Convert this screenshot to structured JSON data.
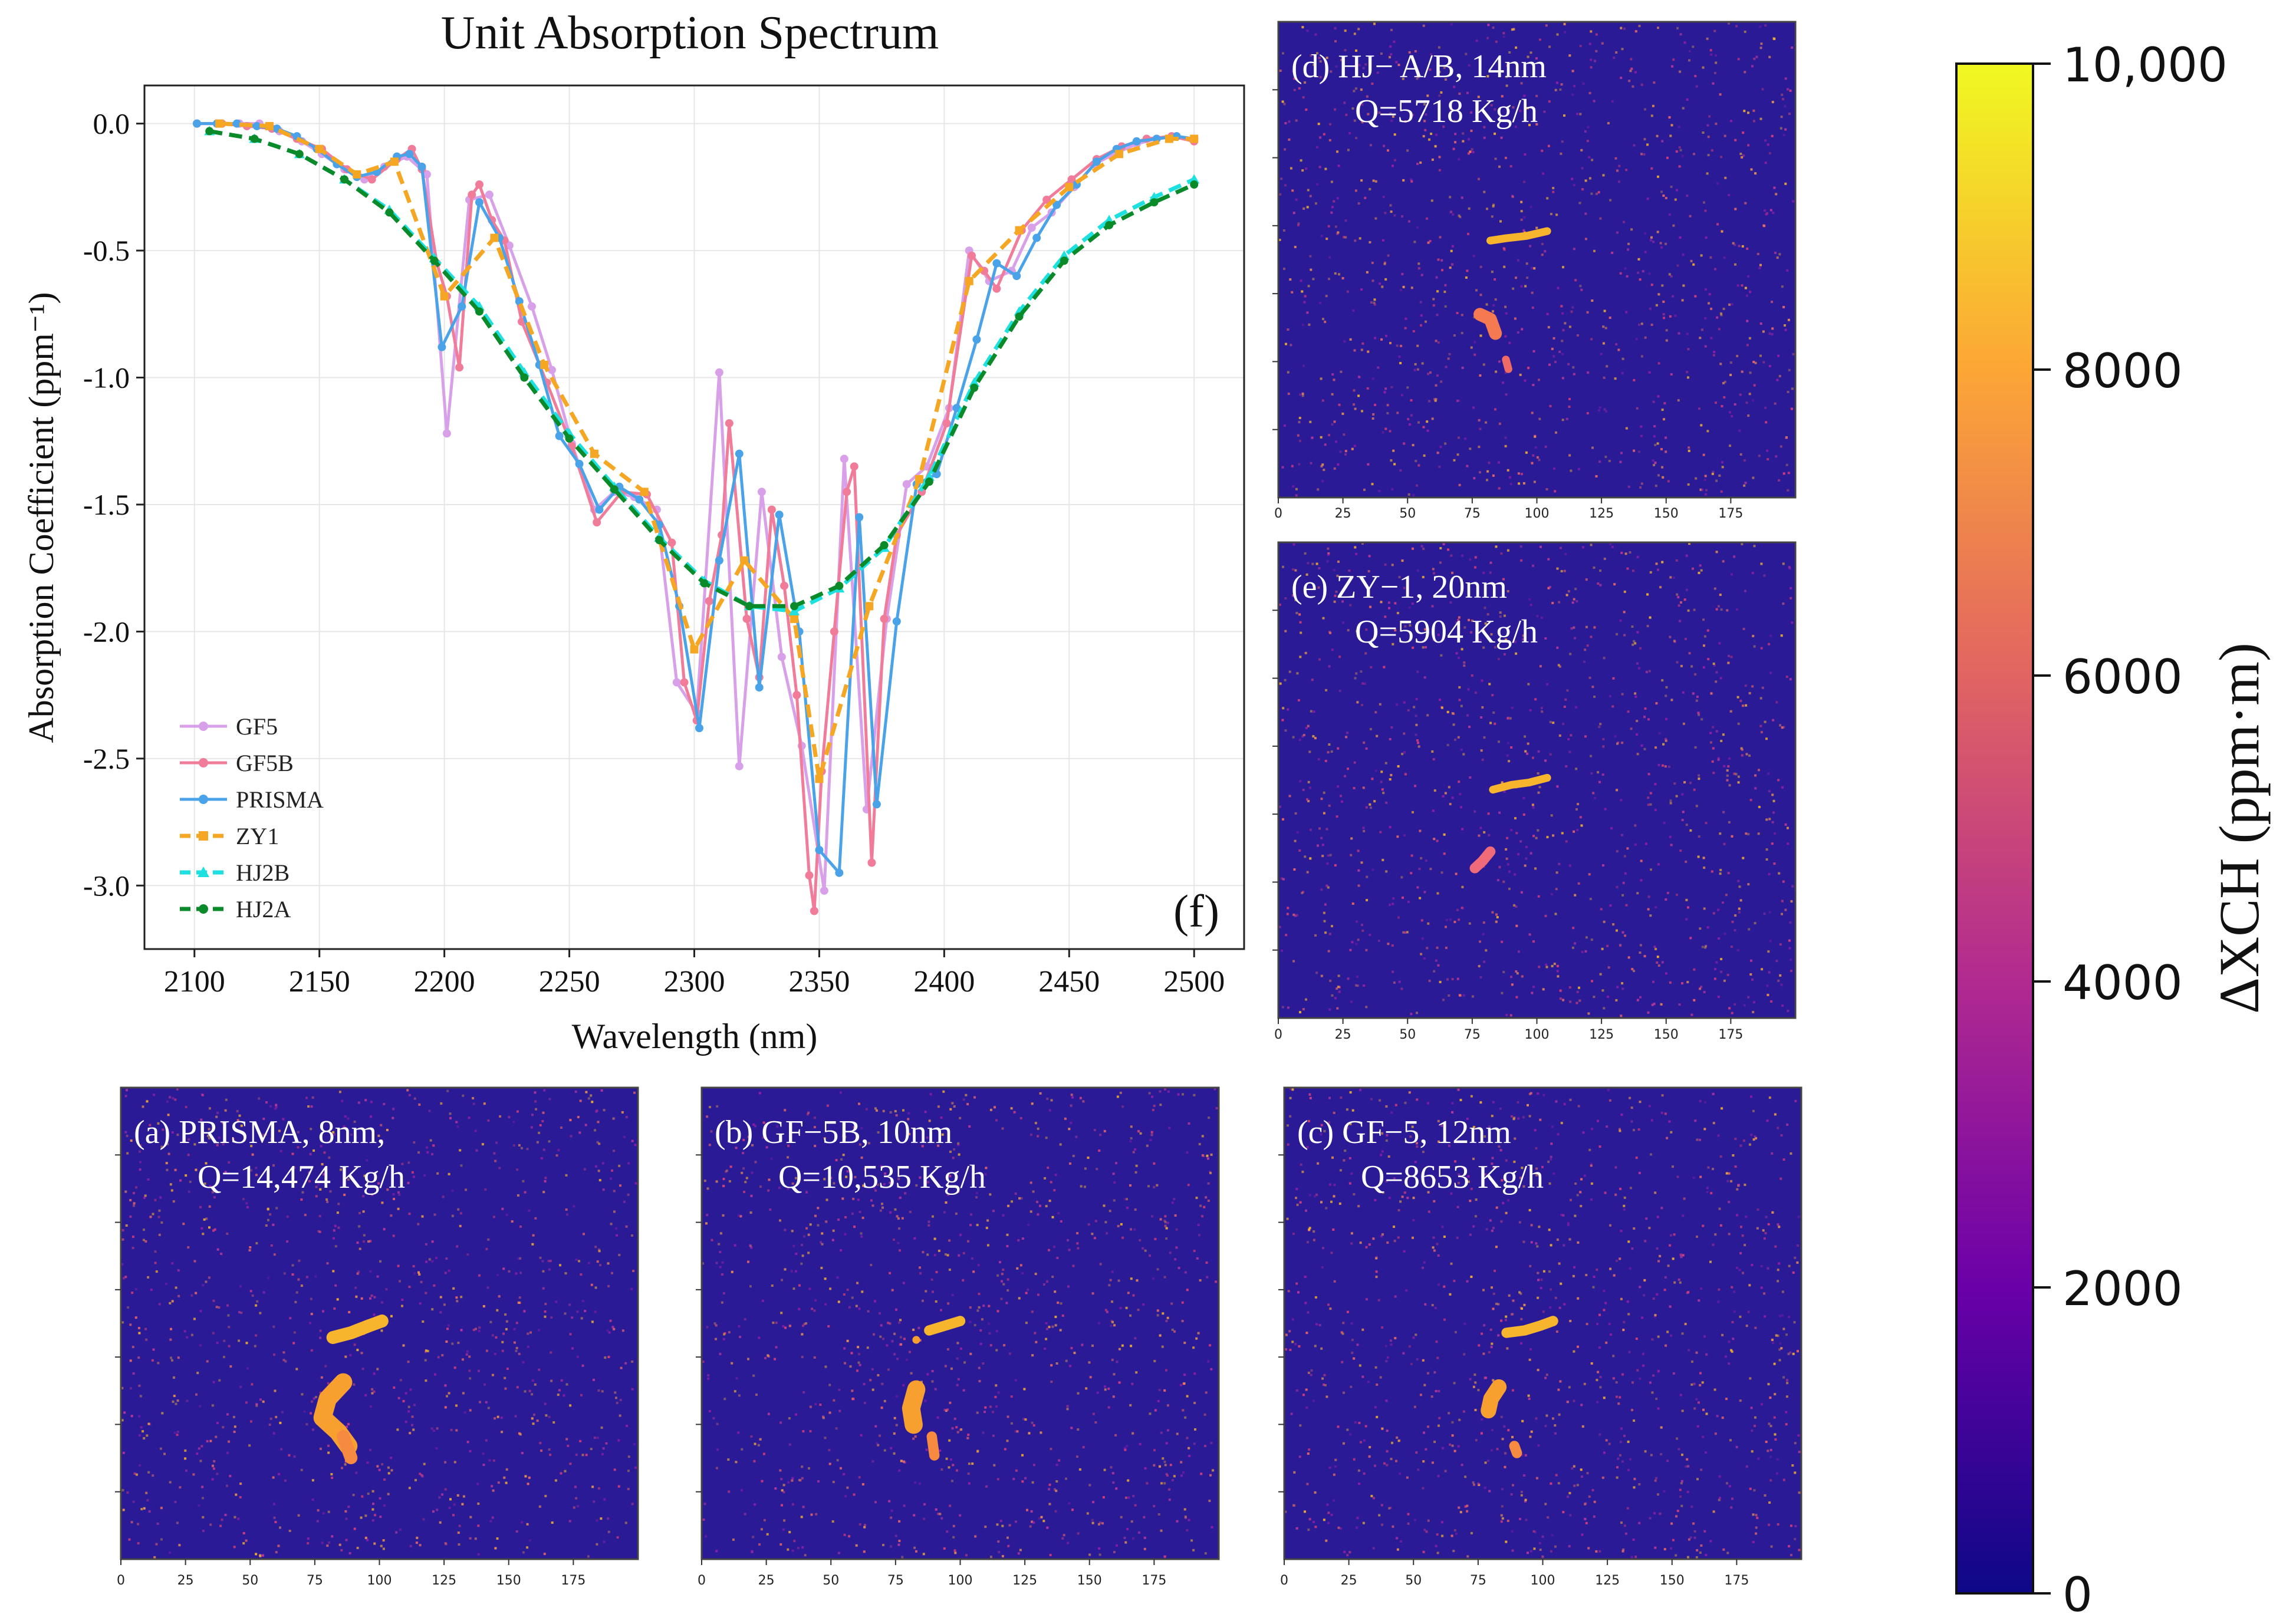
{
  "chart_data": [
    {
      "panel": "f",
      "type": "line",
      "title": "Unit Absorption Spectrum",
      "xlabel": "Wavelength (nm)",
      "ylabel": "Absorption Coefficient (ppm⁻¹)",
      "panel_label": "(f)",
      "xlim": [
        2080,
        2520
      ],
      "ylim": [
        -3.25,
        0.15
      ],
      "grid": true,
      "legend_position": "bottom-left",
      "xticks": [
        {
          "v": 2100,
          "label": "2100"
        },
        {
          "v": 2150,
          "label": "2150"
        },
        {
          "v": 2200,
          "label": "2200"
        },
        {
          "v": 2250,
          "label": "2250"
        },
        {
          "v": 2300,
          "label": "2300"
        },
        {
          "v": 2350,
          "label": "2350"
        },
        {
          "v": 2400,
          "label": "2400"
        },
        {
          "v": 2450,
          "label": "2450"
        },
        {
          "v": 2500,
          "label": "2500"
        }
      ],
      "yticks": [
        {
          "v": 0,
          "label": "0.0"
        },
        {
          "v": -0.5,
          "label": "-0.5"
        },
        {
          "v": -1.0,
          "label": "-1.0"
        },
        {
          "v": -1.5,
          "label": "-1.5"
        },
        {
          "v": -2.0,
          "label": "-2.0"
        },
        {
          "v": -2.5,
          "label": "-2.5"
        },
        {
          "v": -3.0,
          "label": "-3.0"
        }
      ],
      "series": [
        {
          "name": "GF5",
          "color": "#d8a0e8",
          "dash": false,
          "marker": "circle",
          "x": [
            2101,
            2109,
            2118,
            2126,
            2134,
            2143,
            2151,
            2160,
            2168,
            2176,
            2185,
            2193,
            2201,
            2210,
            2218,
            2226,
            2235,
            2243,
            2251,
            2260,
            2268,
            2276,
            2285,
            2293,
            2301,
            2310,
            2318,
            2327,
            2335,
            2343,
            2352,
            2360,
            2369,
            2377,
            2385,
            2393,
            2402,
            2410,
            2418,
            2427,
            2435,
            2443,
            2452,
            2460,
            2468,
            2477,
            2485,
            2493,
            2500
          ],
          "y": [
            0.0,
            0.0,
            0.0,
            0.0,
            -0.03,
            -0.07,
            -0.12,
            -0.18,
            -0.22,
            -0.17,
            -0.13,
            -0.2,
            -1.22,
            -0.3,
            -0.28,
            -0.48,
            -0.72,
            -0.97,
            -1.26,
            -1.52,
            -1.45,
            -1.47,
            -1.52,
            -2.2,
            -2.32,
            -0.98,
            -2.53,
            -1.45,
            -2.1,
            -2.45,
            -3.02,
            -1.32,
            -2.7,
            -1.95,
            -1.42,
            -1.35,
            -1.12,
            -0.5,
            -0.62,
            -0.58,
            -0.41,
            -0.35,
            -0.25,
            -0.16,
            -0.12,
            -0.08,
            -0.06,
            -0.05,
            -0.06
          ]
        },
        {
          "name": "GF5B",
          "color": "#f07c9a",
          "dash": false,
          "marker": "circle",
          "x": [
            2101,
            2111,
            2121,
            2131,
            2141,
            2151,
            2161,
            2171,
            2181,
            2187,
            2191,
            2197,
            2201,
            2206,
            2211,
            2214,
            2219,
            2224,
            2231,
            2241,
            2251,
            2261,
            2271,
            2281,
            2291,
            2296,
            2301,
            2306,
            2311,
            2314,
            2321,
            2326,
            2331,
            2336,
            2341,
            2346,
            2348,
            2351,
            2356,
            2361,
            2364,
            2371,
            2376,
            2381,
            2391,
            2401,
            2411,
            2416,
            2421,
            2431,
            2441,
            2451,
            2461,
            2471,
            2481,
            2491,
            2500
          ],
          "y": [
            0.0,
            0.0,
            -0.01,
            -0.02,
            -0.06,
            -0.1,
            -0.18,
            -0.22,
            -0.14,
            -0.1,
            -0.18,
            -0.55,
            -0.68,
            -0.96,
            -0.28,
            -0.24,
            -0.38,
            -0.46,
            -0.78,
            -1.02,
            -1.27,
            -1.57,
            -1.45,
            -1.46,
            -1.65,
            -2.2,
            -2.35,
            -1.88,
            -1.62,
            -1.18,
            -1.95,
            -2.18,
            -1.52,
            -1.82,
            -2.25,
            -2.96,
            -3.1,
            -2.55,
            -2.0,
            -1.45,
            -1.35,
            -2.91,
            -1.95,
            -1.62,
            -1.45,
            -1.18,
            -0.52,
            -0.58,
            -0.65,
            -0.42,
            -0.3,
            -0.22,
            -0.14,
            -0.09,
            -0.06,
            -0.05,
            -0.07
          ]
        },
        {
          "name": "PRISMA",
          "color": "#4aa3e8",
          "dash": false,
          "marker": "circle",
          "x": [
            2101,
            2109,
            2117,
            2125,
            2133,
            2141,
            2149,
            2157,
            2165,
            2173,
            2181,
            2186,
            2191,
            2199,
            2207,
            2214,
            2222,
            2230,
            2238,
            2246,
            2254,
            2262,
            2270,
            2278,
            2286,
            2294,
            2302,
            2310,
            2318,
            2326,
            2334,
            2342,
            2350,
            2358,
            2366,
            2373,
            2381,
            2389,
            2397,
            2405,
            2413,
            2421,
            2429,
            2437,
            2445,
            2453,
            2461,
            2469,
            2477,
            2485,
            2493,
            2500
          ],
          "y": [
            0.0,
            0.0,
            0.0,
            -0.01,
            -0.02,
            -0.05,
            -0.1,
            -0.16,
            -0.21,
            -0.19,
            -0.13,
            -0.12,
            -0.17,
            -0.88,
            -0.72,
            -0.31,
            -0.45,
            -0.7,
            -0.95,
            -1.23,
            -1.34,
            -1.52,
            -1.43,
            -1.48,
            -1.58,
            -1.9,
            -2.38,
            -1.72,
            -1.3,
            -2.22,
            -1.54,
            -2.0,
            -2.86,
            -2.95,
            -1.55,
            -2.68,
            -1.96,
            -1.42,
            -1.38,
            -1.12,
            -0.85,
            -0.55,
            -0.6,
            -0.45,
            -0.32,
            -0.24,
            -0.15,
            -0.1,
            -0.07,
            -0.06,
            -0.05,
            -0.06
          ]
        },
        {
          "name": "ZY1",
          "color": "#f5a623",
          "dash": true,
          "marker": "square",
          "x": [
            2110,
            2130,
            2150,
            2165,
            2180,
            2200,
            2220,
            2240,
            2260,
            2280,
            2300,
            2320,
            2340,
            2350,
            2370,
            2390,
            2410,
            2430,
            2450,
            2470,
            2490,
            2500
          ],
          "y": [
            0.0,
            -0.01,
            -0.1,
            -0.2,
            -0.15,
            -0.68,
            -0.45,
            -0.95,
            -1.3,
            -1.45,
            -2.07,
            -1.72,
            -1.95,
            -2.58,
            -1.9,
            -1.4,
            -0.62,
            -0.42,
            -0.25,
            -0.12,
            -0.06,
            -0.06
          ]
        },
        {
          "name": "HJ2B",
          "color": "#1ee0e0",
          "dash": true,
          "marker": "triangle",
          "x": [
            2106,
            2124,
            2142,
            2160,
            2178,
            2196,
            2214,
            2232,
            2250,
            2268,
            2286,
            2304,
            2322,
            2340,
            2358,
            2376,
            2394,
            2412,
            2430,
            2448,
            2466,
            2484,
            2500
          ],
          "y": [
            -0.03,
            -0.06,
            -0.12,
            -0.22,
            -0.34,
            -0.53,
            -0.72,
            -0.98,
            -1.22,
            -1.43,
            -1.63,
            -1.8,
            -1.9,
            -1.92,
            -1.83,
            -1.67,
            -1.39,
            -1.02,
            -0.74,
            -0.52,
            -0.38,
            -0.29,
            -0.22
          ]
        },
        {
          "name": "HJ2A",
          "color": "#0a8a28",
          "dash": true,
          "marker": "circle",
          "x": [
            2106,
            2124,
            2142,
            2160,
            2178,
            2196,
            2214,
            2232,
            2250,
            2268,
            2286,
            2304,
            2322,
            2340,
            2358,
            2376,
            2394,
            2412,
            2430,
            2448,
            2466,
            2484,
            2500
          ],
          "y": [
            -0.03,
            -0.06,
            -0.12,
            -0.22,
            -0.35,
            -0.54,
            -0.74,
            -1.0,
            -1.24,
            -1.44,
            -1.64,
            -1.81,
            -1.9,
            -1.9,
            -1.82,
            -1.66,
            -1.41,
            -1.04,
            -0.76,
            -0.54,
            -0.4,
            -0.31,
            -0.24
          ]
        }
      ]
    },
    {
      "panel": "d",
      "type": "heatmap",
      "label_line1": "(d) HJ− A/B, 14nm",
      "label_line2": "Q=5718 Kg/h",
      "xticks": [
        {
          "v": 0,
          "label": "0"
        },
        {
          "v": 25,
          "label": "25"
        },
        {
          "v": 50,
          "label": "50"
        },
        {
          "v": 75,
          "label": "75"
        },
        {
          "v": 100,
          "label": "100"
        },
        {
          "v": 125,
          "label": "125"
        },
        {
          "v": 150,
          "label": "150"
        },
        {
          "v": 175,
          "label": "175"
        }
      ],
      "xlim": [
        0,
        200
      ],
      "ylim": [
        0,
        200
      ],
      "plume": [
        {
          "x": [
            82,
            88,
            96,
            104
          ],
          "y": [
            92,
            91,
            90,
            88
          ],
          "w": 3,
          "color": "#f7b52e"
        },
        {
          "x": [
            78,
            82,
            84
          ],
          "y": [
            123,
            125,
            131
          ],
          "w": 5,
          "color": "#f57a52"
        },
        {
          "x": [
            88,
            89
          ],
          "y": [
            142,
            146
          ],
          "w": 3,
          "color": "#f06a66"
        }
      ]
    },
    {
      "panel": "e",
      "type": "heatmap",
      "label_line1": "(e) ZY−1, 20nm",
      "label_line2": "Q=5904 Kg/h",
      "xticks": [
        {
          "v": 0,
          "label": "0"
        },
        {
          "v": 25,
          "label": "25"
        },
        {
          "v": 50,
          "label": "50"
        },
        {
          "v": 75,
          "label": "75"
        },
        {
          "v": 100,
          "label": "100"
        },
        {
          "v": 125,
          "label": "125"
        },
        {
          "v": 150,
          "label": "150"
        },
        {
          "v": 175,
          "label": "175"
        }
      ],
      "xlim": [
        0,
        200
      ],
      "ylim": [
        0,
        200
      ],
      "plume": [
        {
          "x": [
            83,
            90,
            97,
            104
          ],
          "y": [
            104,
            102,
            101,
            99
          ],
          "w": 3,
          "color": "#f7b52e"
        },
        {
          "x": [
            76,
            79,
            82
          ],
          "y": [
            137,
            134,
            130
          ],
          "w": 4,
          "color": "#f06b7a"
        }
      ]
    },
    {
      "panel": "a",
      "type": "heatmap",
      "label_line1": "(a)  PRISMA, 8nm,",
      "label_line2": "Q=14,474 Kg/h",
      "xticks": [
        {
          "v": 0,
          "label": "0"
        },
        {
          "v": 25,
          "label": "25"
        },
        {
          "v": 50,
          "label": "50"
        },
        {
          "v": 75,
          "label": "75"
        },
        {
          "v": 100,
          "label": "100"
        },
        {
          "v": 125,
          "label": "125"
        },
        {
          "v": 150,
          "label": "150"
        },
        {
          "v": 175,
          "label": "175"
        }
      ],
      "xlim": [
        0,
        200
      ],
      "ylim": [
        0,
        200
      ],
      "plume": [
        {
          "x": [
            82,
            89,
            96,
            101
          ],
          "y": [
            106,
            104,
            101,
            99
          ],
          "w": 5,
          "color": "#f7b52e"
        },
        {
          "x": [
            86,
            80,
            78,
            84,
            88
          ],
          "y": [
            125,
            132,
            140,
            146,
            152
          ],
          "w": 7,
          "color": "#f7a030"
        },
        {
          "x": [
            86,
            89
          ],
          "y": [
            148,
            157
          ],
          "w": 5,
          "color": "#f58a40"
        }
      ]
    },
    {
      "panel": "b",
      "type": "heatmap",
      "label_line1": "(b) GF−5B, 10nm",
      "label_line2": "Q=10,535 Kg/h",
      "xticks": [
        {
          "v": 0,
          "label": "0"
        },
        {
          "v": 25,
          "label": "25"
        },
        {
          "v": 50,
          "label": "50"
        },
        {
          "v": 75,
          "label": "75"
        },
        {
          "v": 100,
          "label": "100"
        },
        {
          "v": 125,
          "label": "125"
        },
        {
          "v": 150,
          "label": "150"
        },
        {
          "v": 175,
          "label": "175"
        }
      ],
      "xlim": [
        0,
        200
      ],
      "ylim": [
        0,
        200
      ],
      "plume": [
        {
          "x": [
            88,
            94,
            100
          ],
          "y": [
            103,
            101,
            99
          ],
          "w": 4,
          "color": "#f7b52e"
        },
        {
          "x": [
            83
          ],
          "y": [
            107
          ],
          "w": 3,
          "color": "#f7a030"
        },
        {
          "x": [
            83,
            81,
            82
          ],
          "y": [
            128,
            136,
            143
          ],
          "w": 7,
          "color": "#f7a030"
        },
        {
          "x": [
            89,
            90
          ],
          "y": [
            148,
            156
          ],
          "w": 4,
          "color": "#f58a40"
        }
      ]
    },
    {
      "panel": "c",
      "type": "heatmap",
      "label_line1": "(c) GF−5, 12nm",
      "label_line2": "Q=8653 Kg/h",
      "xticks": [
        {
          "v": 0,
          "label": "0"
        },
        {
          "v": 25,
          "label": "25"
        },
        {
          "v": 50,
          "label": "50"
        },
        {
          "v": 75,
          "label": "75"
        },
        {
          "v": 100,
          "label": "100"
        },
        {
          "v": 125,
          "label": "125"
        },
        {
          "v": 150,
          "label": "150"
        },
        {
          "v": 175,
          "label": "175"
        }
      ],
      "xlim": [
        0,
        200
      ],
      "ylim": [
        0,
        200
      ],
      "plume": [
        {
          "x": [
            86,
            93,
            99,
            104
          ],
          "y": [
            104,
            103,
            101,
            99
          ],
          "w": 4,
          "color": "#f7b52e"
        },
        {
          "x": [
            83,
            80,
            79
          ],
          "y": [
            127,
            132,
            137
          ],
          "w": 6,
          "color": "#f7a030"
        },
        {
          "x": [
            89,
            90
          ],
          "y": [
            152,
            155
          ],
          "w": 4,
          "color": "#f58a40"
        }
      ]
    },
    {
      "type": "colorbar",
      "label": "ΔXCH (ppm·m)",
      "min": 0,
      "max": 10000,
      "ticks": [
        {
          "v": 0,
          "label": "0"
        },
        {
          "v": 2000,
          "label": "2000"
        },
        {
          "v": 4000,
          "label": "4000"
        },
        {
          "v": 6000,
          "label": "6000"
        },
        {
          "v": 8000,
          "label": "8000"
        },
        {
          "v": 10000,
          "label": "10,000"
        }
      ],
      "colors": [
        "#0d0887",
        "#6a00a8",
        "#b12a90",
        "#e16462",
        "#fca636",
        "#f0f921"
      ]
    }
  ]
}
